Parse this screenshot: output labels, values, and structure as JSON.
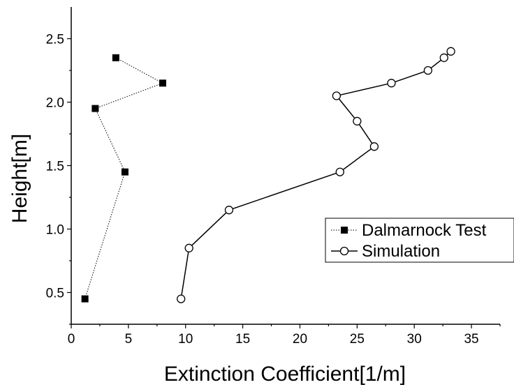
{
  "chart_data": {
    "type": "line",
    "title": "",
    "xlabel": "Extinction Coefficient[1/m]",
    "ylabel": "Height[m]",
    "xlim": [
      0,
      37.5
    ],
    "ylim": [
      0.25,
      2.75
    ],
    "xticks": [
      0,
      5,
      10,
      15,
      20,
      25,
      30,
      35
    ],
    "yticks": [
      0.5,
      1.0,
      1.5,
      2.0,
      2.5
    ],
    "xtick_labels": [
      "0",
      "5",
      "10",
      "15",
      "20",
      "25",
      "30",
      "35"
    ],
    "ytick_labels": [
      "0.5",
      "1.0",
      "1.5",
      "2.0",
      "2.5"
    ],
    "grid": false,
    "legend_position": "center-right",
    "series": [
      {
        "name": "Dalmarnock Test",
        "marker": "filled-square",
        "line_style": "dotted",
        "color": "#000000",
        "points": [
          {
            "x": 1.2,
            "y": 0.45
          },
          {
            "x": 4.7,
            "y": 1.45
          },
          {
            "x": 2.1,
            "y": 1.95
          },
          {
            "x": 8.0,
            "y": 2.15
          },
          {
            "x": 3.9,
            "y": 2.35
          }
        ]
      },
      {
        "name": "Simulation",
        "marker": "open-circle",
        "line_style": "solid",
        "color": "#000000",
        "points": [
          {
            "x": 9.6,
            "y": 0.45
          },
          {
            "x": 10.3,
            "y": 0.85
          },
          {
            "x": 13.8,
            "y": 1.15
          },
          {
            "x": 23.5,
            "y": 1.45
          },
          {
            "x": 26.5,
            "y": 1.65
          },
          {
            "x": 25.0,
            "y": 1.85
          },
          {
            "x": 23.2,
            "y": 2.05
          },
          {
            "x": 28.0,
            "y": 2.15
          },
          {
            "x": 31.2,
            "y": 2.25
          },
          {
            "x": 32.6,
            "y": 2.35
          },
          {
            "x": 33.2,
            "y": 2.4
          }
        ]
      }
    ]
  }
}
